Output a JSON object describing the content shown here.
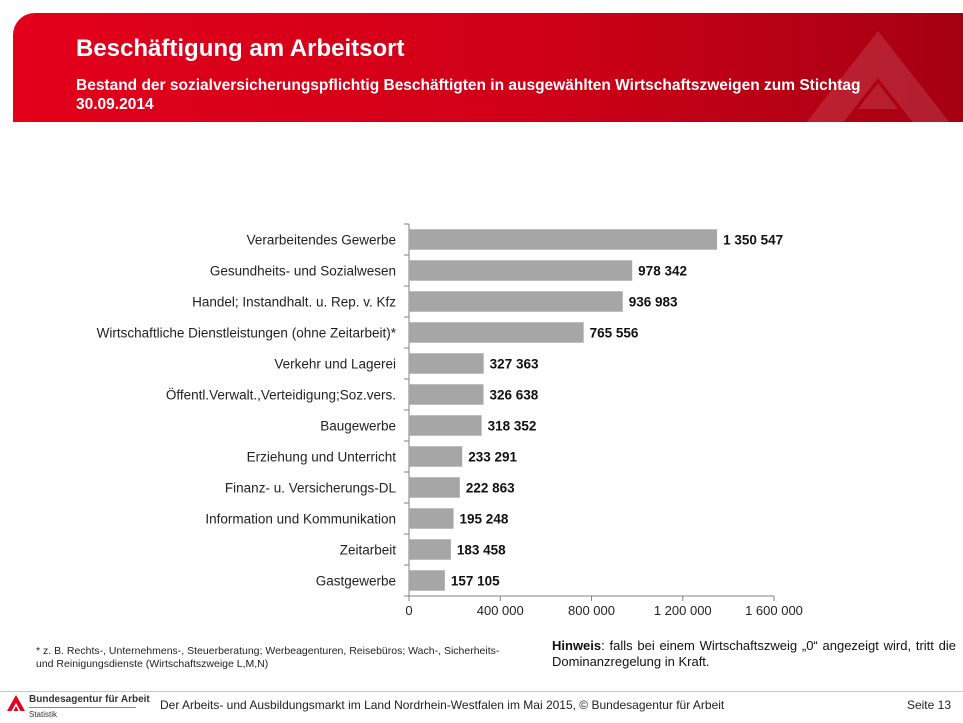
{
  "header": {
    "title": "Beschäftigung am Arbeitsort",
    "subtitle": "Bestand der sozialversicherungspflichtig Beschäftigten in ausgewählten Wirtschaftszweigen zum Stichtag 30.09.2014"
  },
  "chart_data": {
    "type": "bar",
    "orientation": "horizontal",
    "categories": [
      "Verarbeitendes Gewerbe",
      "Gesundheits- und Sozialwesen",
      "Handel; Instandhalt. u. Rep. v. Kfz",
      "Wirtschaftliche Dienstleistungen (ohne Zeitarbeit)*",
      "Verkehr und Lagerei",
      "Öffentl.Verwalt.,Verteidigung;Soz.vers.",
      "Baugewerbe",
      "Erziehung und Unterricht",
      "Finanz- u. Versicherungs-DL",
      "Information und Kommunikation",
      "Zeitarbeit",
      "Gastgewerbe"
    ],
    "values": [
      1350547,
      978342,
      936983,
      765556,
      327363,
      326638,
      318352,
      233291,
      222863,
      195248,
      183458,
      157105
    ],
    "value_labels": [
      "1 350 547",
      "978 342",
      "936 983",
      "765 556",
      "327 363",
      "326 638",
      "318 352",
      "233 291",
      "222 863",
      "195 248",
      "183 458",
      "157 105"
    ],
    "xlim": [
      0,
      1600000
    ],
    "x_ticks": [
      0,
      400000,
      800000,
      1200000,
      1600000
    ],
    "x_tick_labels": [
      "0",
      "400 000",
      "800 000",
      "1 200 000",
      "1 600 000"
    ],
    "bar_color": "#a6a6a6",
    "grid": false,
    "legend": "none"
  },
  "notes": {
    "footnote": "* z. B. Rechts-, Unternehmens-, Steuerberatung; Werbeagenturen, Reisebüros; Wach-, Sicherheits- und Reinigungsdienste (Wirtschaftszweige L,M,N)",
    "hint_label": "Hinweis",
    "hint_text": ": falls bei einem Wirtschaftszweig „0“ angezeigt wird, tritt die Dominanzregelung in Kraft."
  },
  "footer": {
    "source": "Der Arbeits- und Ausbildungsmarkt im Land Nordrhein-Westfalen im Mai 2015, © Bundesagentur für Arbeit",
    "page": "Seite 13",
    "org_name": "Bundesagentur für Arbeit",
    "org_dept": "Statistik"
  },
  "colors": {
    "brand_red": "#e2001a",
    "bar": "#a6a6a6"
  }
}
